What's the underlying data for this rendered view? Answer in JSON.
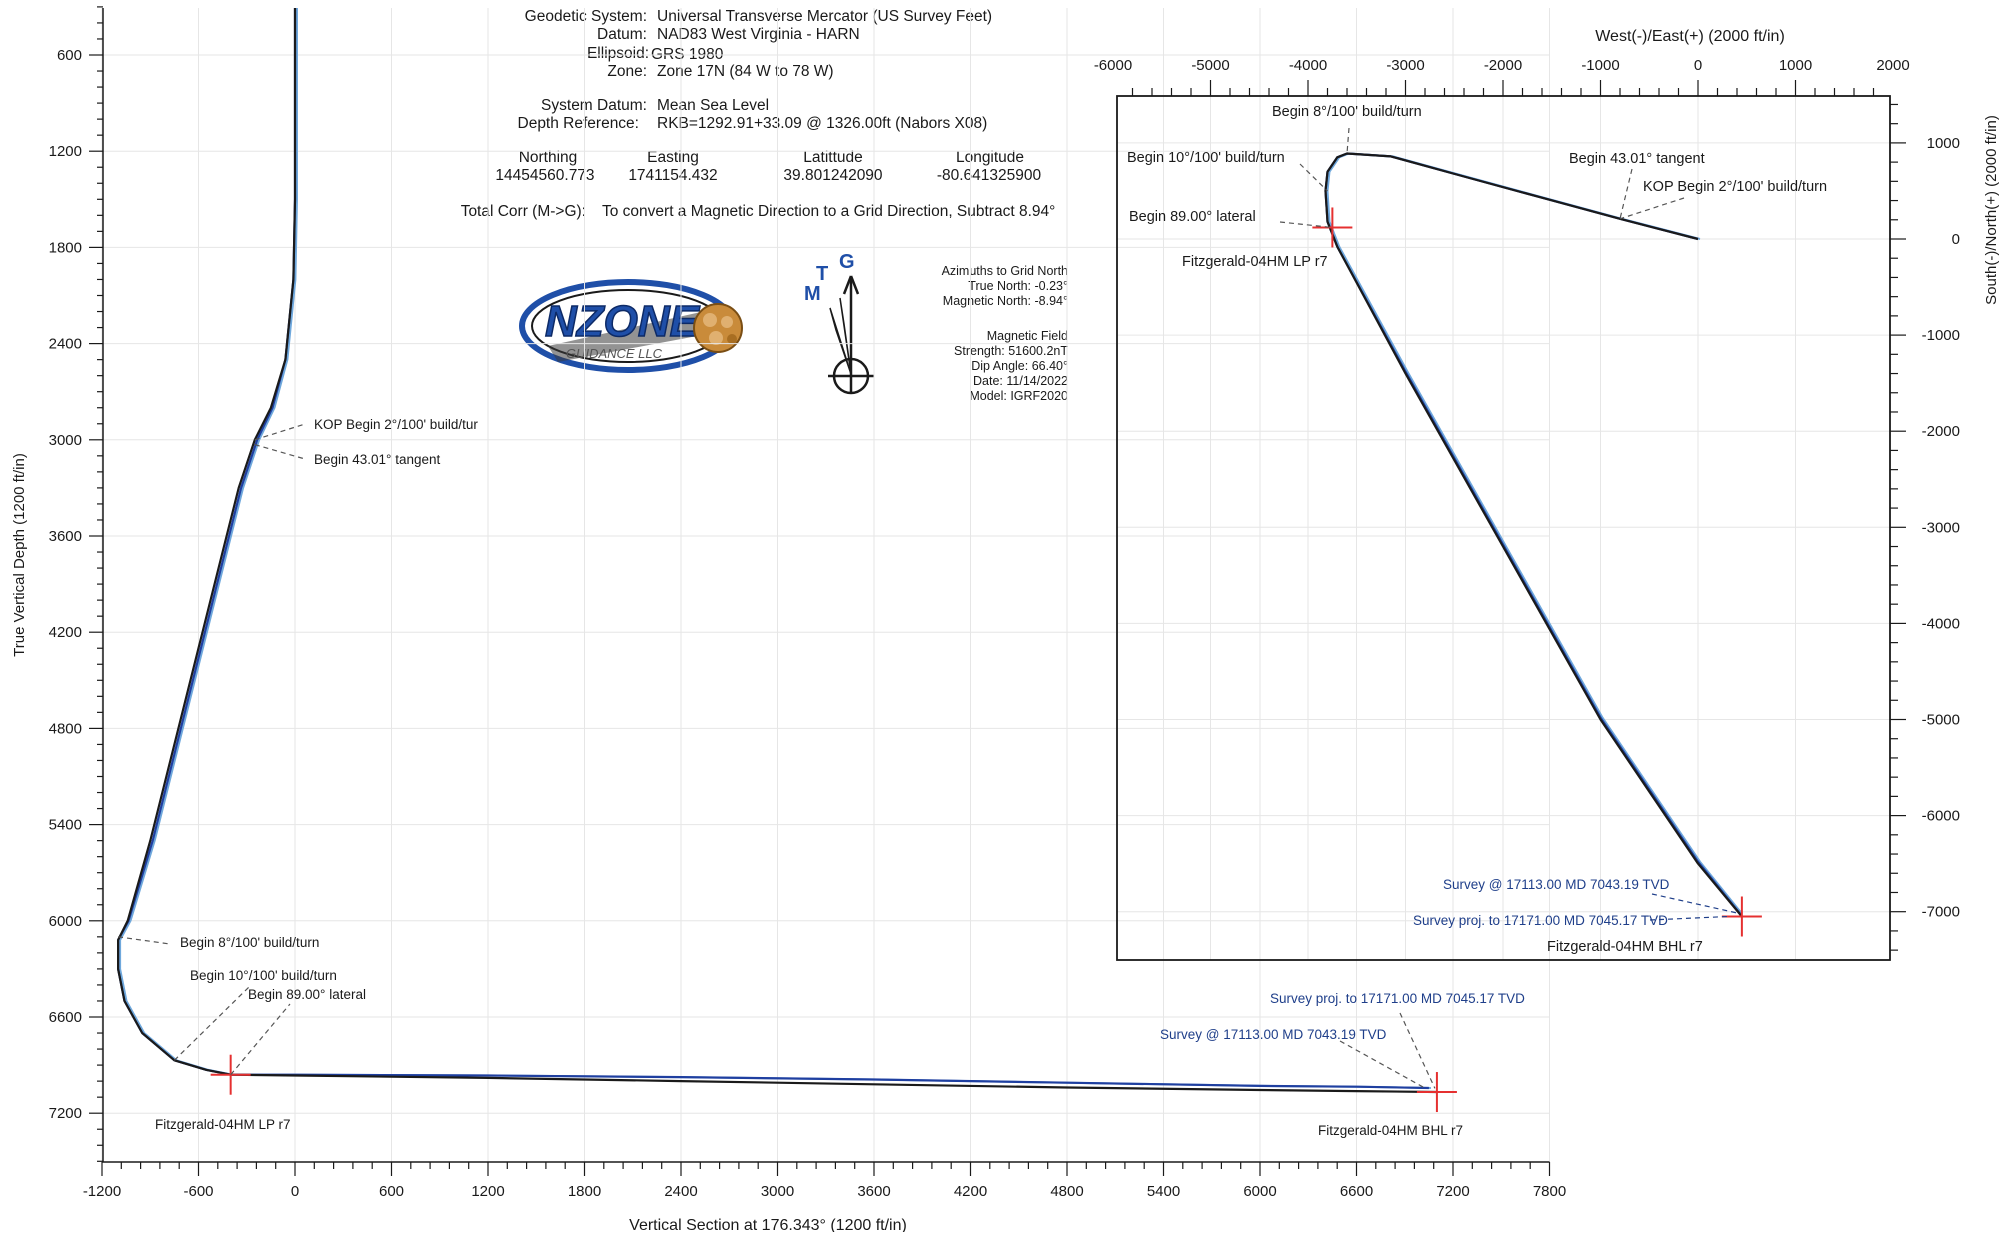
{
  "header": {
    "geodetic_system": {
      "label": "Geodetic System:",
      "value": "Universal Transverse Mercator (US Survey Feet)"
    },
    "datum": {
      "label": "Datum:",
      "value": "NAD83 West Virginia - HARN"
    },
    "ellipsoid": {
      "label": "Ellipsoid:",
      "value": "GRS 1980"
    },
    "zone": {
      "label": "Zone:",
      "value": "Zone 17N (84 W to 78 W)"
    },
    "system_datum": {
      "label": "System Datum:",
      "value": "Mean Sea Level"
    },
    "depth_reference": {
      "label": "Depth Reference:",
      "value": "RKB=1292.91+33.09 @ 1326.00ft (Nabors X08)"
    },
    "coords": {
      "headers": [
        "Northing",
        "Easting",
        "Latittude",
        "Longitude"
      ],
      "values": [
        "14454560.773",
        "1741154.432",
        "39.801242090",
        "-80.641325900"
      ]
    },
    "total_corr": {
      "label": "Total Corr (M->G):",
      "value": "To convert a Magnetic Direction to a Grid Direction, Subtract 8.94°"
    }
  },
  "azimuths": {
    "title": "Azimuths to Grid North",
    "true_north": "True North: -0.23°",
    "magnetic_north": "Magnetic North: -8.94°",
    "field_title": "Magnetic Field",
    "strength": "Strength: 51600.2nT",
    "dip": "Dip Angle: 66.40°",
    "date": "Date: 11/14/2022",
    "model": "Model: IGRF2020"
  },
  "north_arrow": {
    "m": "M",
    "t": "T",
    "g": "G",
    "color": "#1f4fa8"
  },
  "logo": {
    "text": "NZONE",
    "subtext": "GUIDANCE LLC",
    "color": "#1f4fa8"
  },
  "colors": {
    "plan_line": "#1a1a1a",
    "survey_line": "#1f3fa0",
    "survey_light": "#6fa8dc",
    "marker": "#e53030",
    "grid": "#e6e6e6",
    "leader": "#555555",
    "survey_text": "#1f3f8a"
  },
  "chart_data": [
    {
      "type": "line",
      "title": "",
      "xlabel": "Vertical Section at 176.343° (1200 ft/in)",
      "ylabel": "True Vertical Depth (1200 ft/in)",
      "xlim": [
        -1200,
        7800
      ],
      "ylim": [
        7500,
        0
      ],
      "xticks": [
        -1200,
        -600,
        0,
        600,
        1200,
        1800,
        2400,
        3000,
        3600,
        4200,
        4800,
        5400,
        6000,
        6600,
        7200,
        7800
      ],
      "yticks": [
        600,
        1200,
        1800,
        2400,
        3000,
        3600,
        4200,
        4800,
        5400,
        6000,
        6600,
        7200
      ],
      "grid": true,
      "series": [
        {
          "role": "plan",
          "x": [
            0,
            0,
            -10,
            -60,
            -150,
            -250,
            -350,
            -450,
            -600,
            -750,
            -900,
            -1040,
            -1100,
            -1100,
            -1060,
            -950,
            -750,
            -550,
            -400,
            0,
            1200,
            2400,
            3600,
            4800,
            6000,
            6600,
            7100
          ],
          "y": [
            -300,
            1500,
            2000,
            2500,
            2800,
            3000,
            3300,
            3700,
            4300,
            4900,
            5500,
            6000,
            6120,
            6300,
            6500,
            6700,
            6870,
            6930,
            6960,
            6965,
            6980,
            7000,
            7020,
            7040,
            7055,
            7062,
            7068
          ]
        },
        {
          "role": "survey",
          "x": [
            0,
            0,
            -10,
            -60,
            -140,
            -235,
            -335,
            -435,
            -585,
            -735,
            -885,
            -1035,
            -1100,
            -1100,
            -1060,
            -950,
            -750,
            -550,
            -400,
            0,
            1200,
            2400,
            3600,
            4800,
            6000,
            6600,
            7050
          ],
          "y": [
            -300,
            1500,
            2000,
            2500,
            2800,
            3000,
            3300,
            3700,
            4300,
            4900,
            5500,
            6000,
            6120,
            6300,
            6500,
            6700,
            6870,
            6930,
            6960,
            6960,
            6965,
            6975,
            6990,
            7010,
            7030,
            7035,
            7043
          ]
        }
      ],
      "markers": [
        {
          "name": "Fitzgerald-04HM LP r7",
          "x": -400,
          "y": 6960
        },
        {
          "name": "Fitzgerald-04HM BHL r7",
          "x": 7100,
          "y": 7068
        }
      ],
      "annotations": [
        {
          "text": "KOP Begin 2°/100' build/tur",
          "x": -250,
          "y": 3000
        },
        {
          "text": "Begin 43.01° tangent",
          "x": -250,
          "y": 3060
        },
        {
          "text": "Begin 8°/100' build/turn",
          "x": -1100,
          "y": 6120
        },
        {
          "text": "Begin 10°/100' build/turn",
          "x": -750,
          "y": 6870
        },
        {
          "text": "Begin 89.00° lateral",
          "x": -400,
          "y": 6960
        },
        {
          "text": "Survey proj. to 17171.00 MD 7045.17 TVD",
          "x": 7100,
          "y": 7045,
          "kind": "survey"
        },
        {
          "text": "Survey @ 17113.00 MD 7043.19 TVD",
          "x": 7050,
          "y": 7043,
          "kind": "survey"
        }
      ]
    },
    {
      "type": "line",
      "title": "",
      "xlabel": "West(-)/East(+) (2000 ft/in)",
      "ylabel": "South(-)/North(+) (2000 ft/in)",
      "xlim": [
        -6000,
        2000
      ],
      "ylim": [
        -7500,
        1500
      ],
      "xticks": [
        -6000,
        -5000,
        -4000,
        -3000,
        -2000,
        -1000,
        0,
        1000,
        2000
      ],
      "yticks": [
        1000,
        0,
        -1000,
        -2000,
        -3000,
        -4000,
        -5000,
        -6000,
        -7000
      ],
      "grid": true,
      "series": [
        {
          "role": "plan",
          "x": [
            0,
            -800,
            -1600,
            -2400,
            -3150,
            -3600,
            -3700,
            -3800,
            -3820,
            -3800,
            -3700,
            -3000,
            -2000,
            -1000,
            0,
            450
          ],
          "y": [
            0,
            210,
            430,
            650,
            860,
            890,
            850,
            700,
            500,
            180,
            -80,
            -1400,
            -3200,
            -5000,
            -6500,
            -7050
          ]
        },
        {
          "role": "survey",
          "x": [
            0,
            -800,
            -1600,
            -2400,
            -3150,
            -3600,
            -3700,
            -3800,
            -3820,
            -3800,
            -3700,
            -3000,
            -2000,
            -1000,
            0,
            430
          ],
          "y": [
            0,
            210,
            430,
            650,
            860,
            890,
            850,
            700,
            500,
            180,
            -80,
            -1380,
            -3180,
            -4980,
            -6480,
            -7020
          ]
        }
      ],
      "markers": [
        {
          "name": "Fitzgerald-04HM LP r7",
          "x": -3750,
          "y": 120
        },
        {
          "name": "Fitzgerald-04HM BHL r7",
          "x": 450,
          "y": -7050
        }
      ],
      "annotations": [
        {
          "text": "Begin 8°/100' build/turn",
          "x": -3600,
          "y": 890
        },
        {
          "text": "Begin 10°/100' build/turn",
          "x": -3800,
          "y": 500
        },
        {
          "text": "Begin 43.01° tangent",
          "x": -800,
          "y": 210
        },
        {
          "text": "KOP Begin 2°/100' build/turn",
          "x": -800,
          "y": 210
        },
        {
          "text": "Begin 89.00° lateral",
          "x": -3750,
          "y": 120
        },
        {
          "text": "Survey @ 17113.00 MD 7043.19 TVD",
          "x": 430,
          "y": -7020,
          "kind": "survey"
        },
        {
          "text": "Survey proj. to 17171.00 MD 7045.17 TVD",
          "x": 450,
          "y": -7050,
          "kind": "survey"
        }
      ]
    }
  ]
}
